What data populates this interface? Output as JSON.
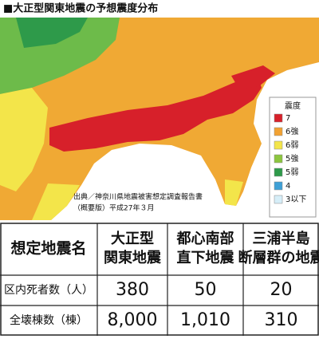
{
  "header": {
    "title": "■大正型関東地震の予想震度分布"
  },
  "legend": {
    "title": "震度",
    "items": [
      {
        "label": "7",
        "color": "#d7202a"
      },
      {
        "label": "6強",
        "color": "#f2a233"
      },
      {
        "label": "6弱",
        "color": "#f3e54a"
      },
      {
        "label": "5強",
        "color": "#8cc63f"
      },
      {
        "label": "5弱",
        "color": "#2e9a4a"
      },
      {
        "label": "4",
        "color": "#3fa0d6"
      },
      {
        "label": "3以下",
        "color": "#d6eef8"
      }
    ]
  },
  "source": {
    "lines": [
      "出典／神奈川県地震被害想定調査報告書",
      "（概要版）平成27年３月"
    ]
  },
  "table": {
    "header": [
      [
        "想定地震名"
      ],
      [
        "大正型",
        "関東地震"
      ],
      [
        "都心南部",
        "直下地震"
      ],
      [
        "三浦半島",
        "断層群の地震"
      ]
    ],
    "rows": [
      [
        "区内死者数（人）",
        "380",
        "50",
        "20"
      ],
      [
        "全壊棟数（棟）",
        "8,000",
        "1,010",
        "310"
      ]
    ]
  }
}
